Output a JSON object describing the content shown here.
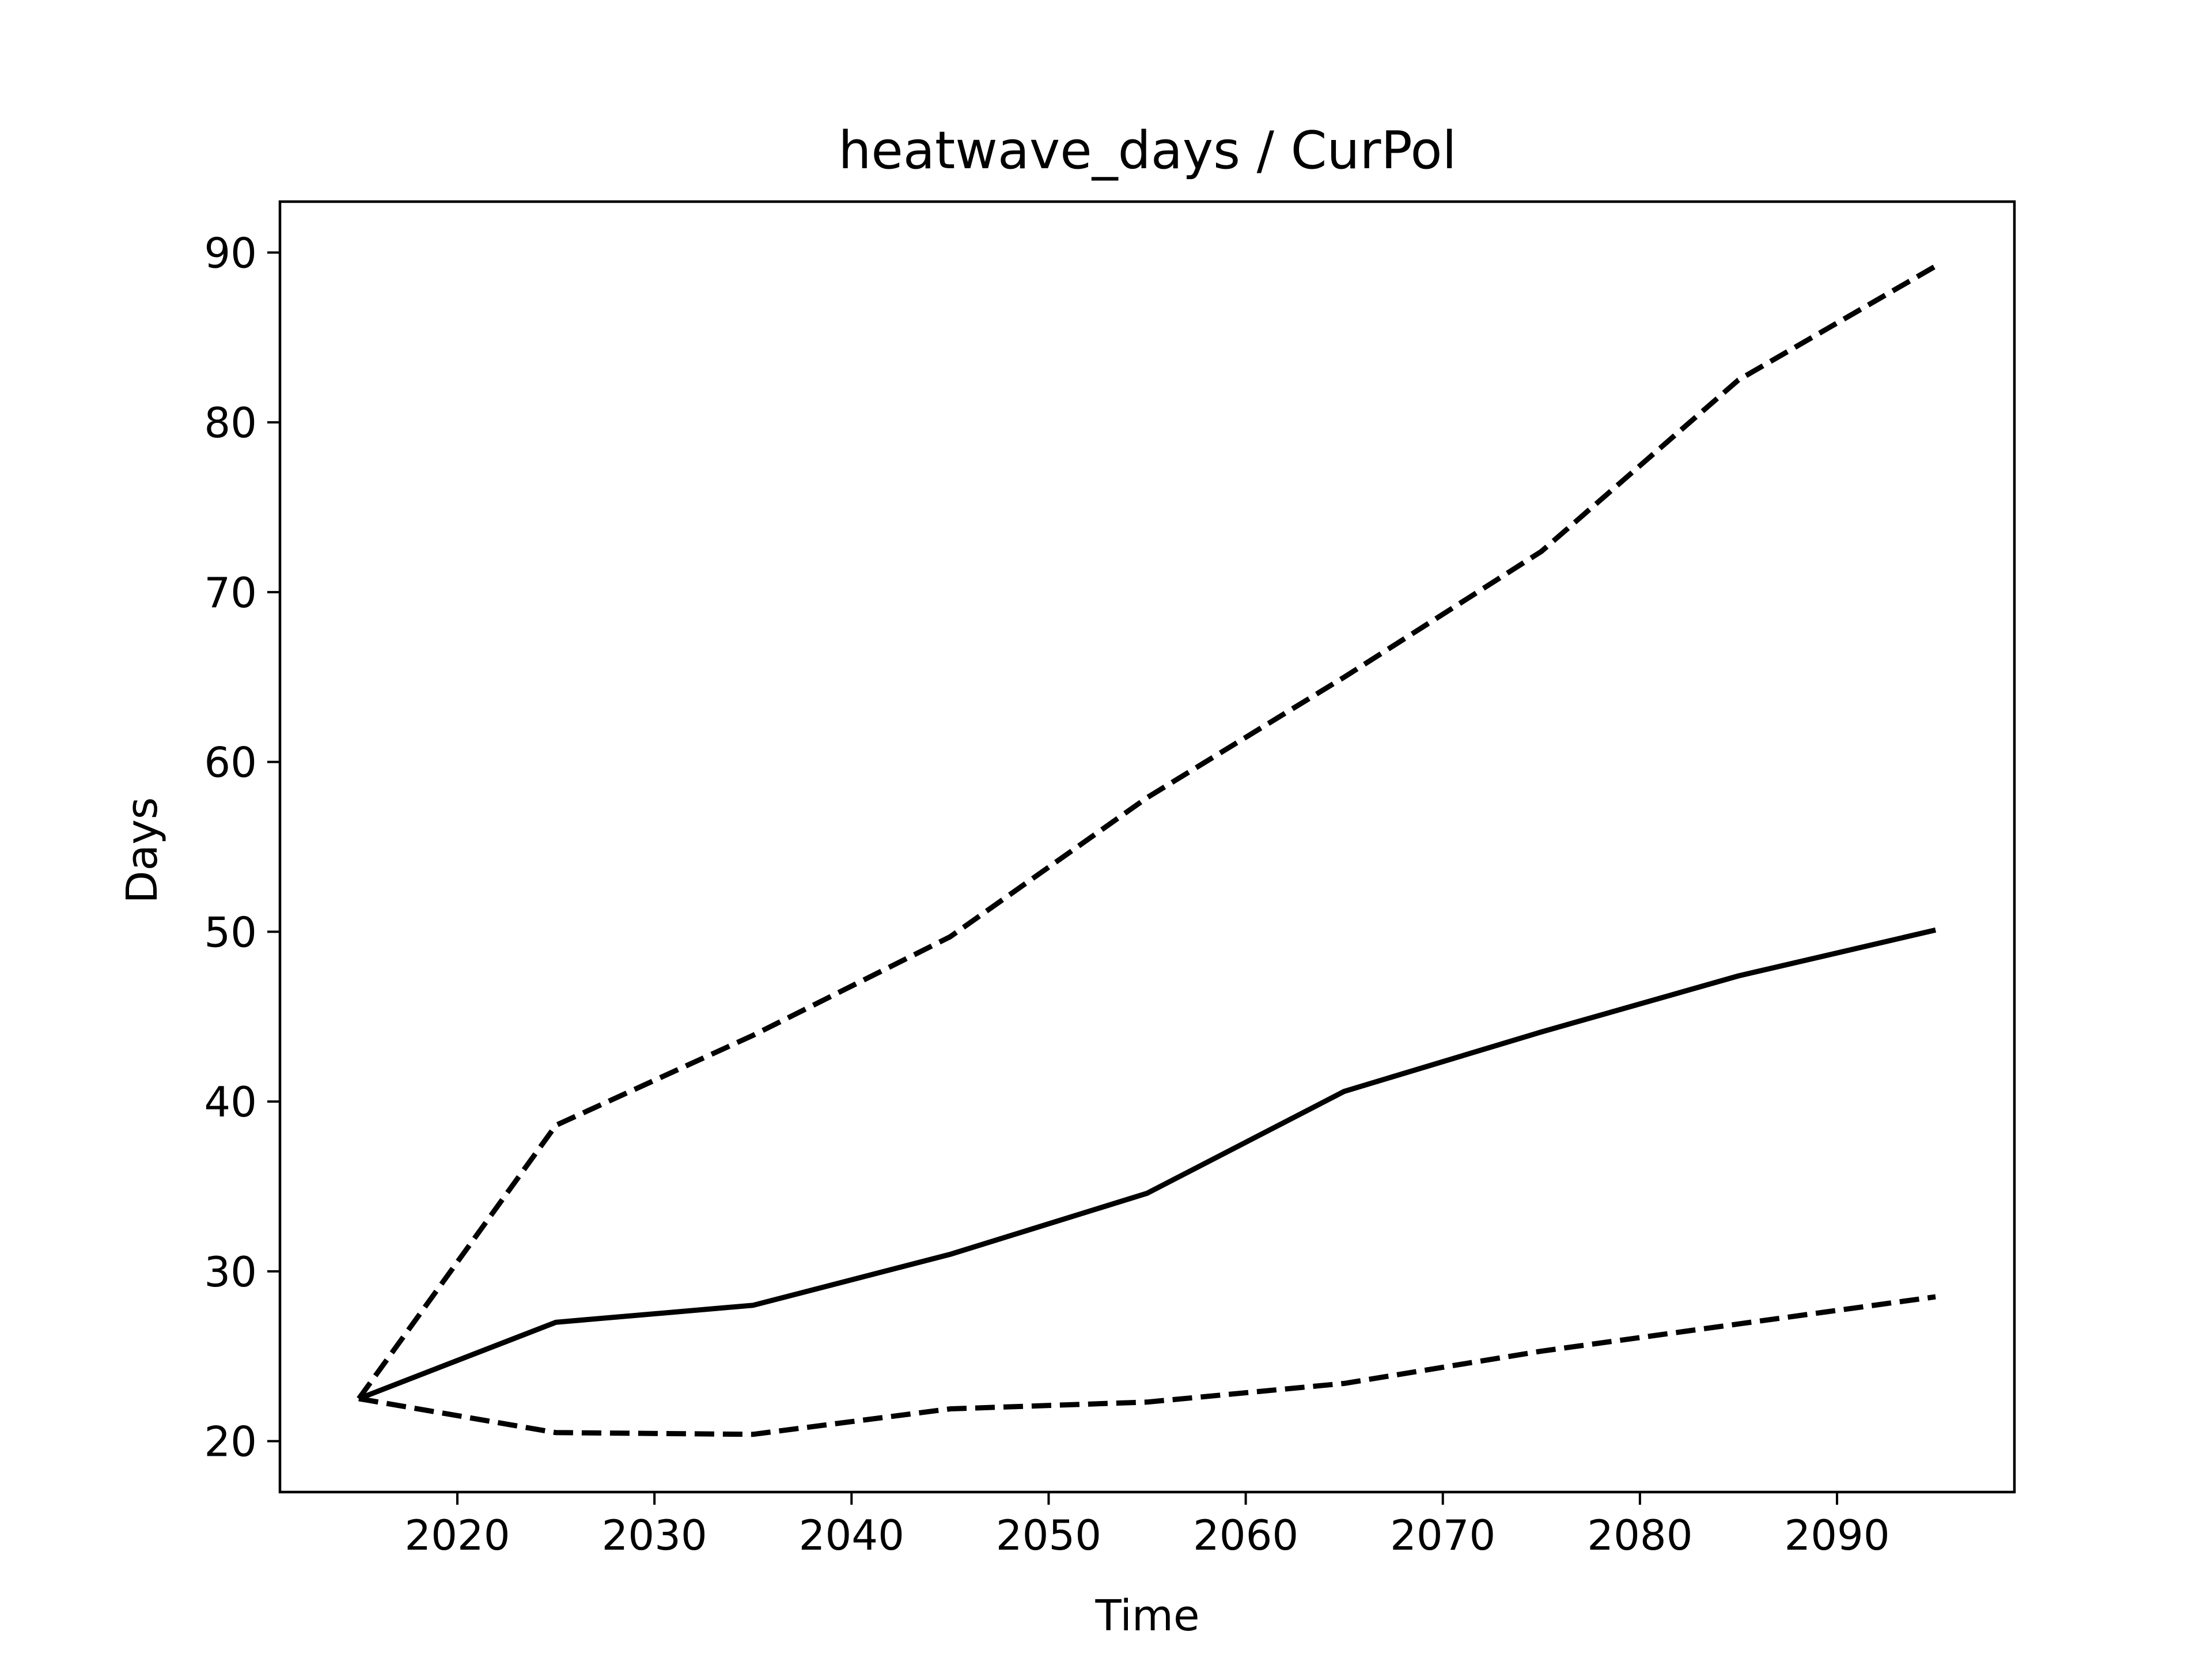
{
  "chart_data": {
    "type": "line",
    "title": "heatwave_days / CurPol",
    "xlabel": "Time",
    "ylabel": "Days",
    "xlim": [
      2011,
      2099
    ],
    "ylim": [
      17,
      93
    ],
    "xticks": [
      2020,
      2030,
      2040,
      2050,
      2060,
      2070,
      2080,
      2090
    ],
    "yticks": [
      20,
      30,
      40,
      50,
      60,
      70,
      80,
      90
    ],
    "grid": false,
    "legend": "none",
    "x": [
      2015,
      2025,
      2035,
      2045,
      2055,
      2065,
      2075,
      2085,
      2095
    ],
    "series": [
      {
        "style": "solid",
        "color": "#000000",
        "values": [
          22.5,
          27.0,
          28.0,
          31.0,
          34.6,
          40.6,
          44.1,
          47.4,
          50.1
        ]
      },
      {
        "style": "dashed",
        "color": "#000000",
        "values": [
          22.5,
          38.6,
          43.9,
          49.7,
          57.9,
          65.0,
          72.4,
          82.5,
          89.2
        ]
      },
      {
        "style": "dashed",
        "color": "#000000",
        "values": [
          22.5,
          20.5,
          20.4,
          21.9,
          22.3,
          23.4,
          25.3,
          26.9,
          28.5
        ]
      }
    ]
  }
}
